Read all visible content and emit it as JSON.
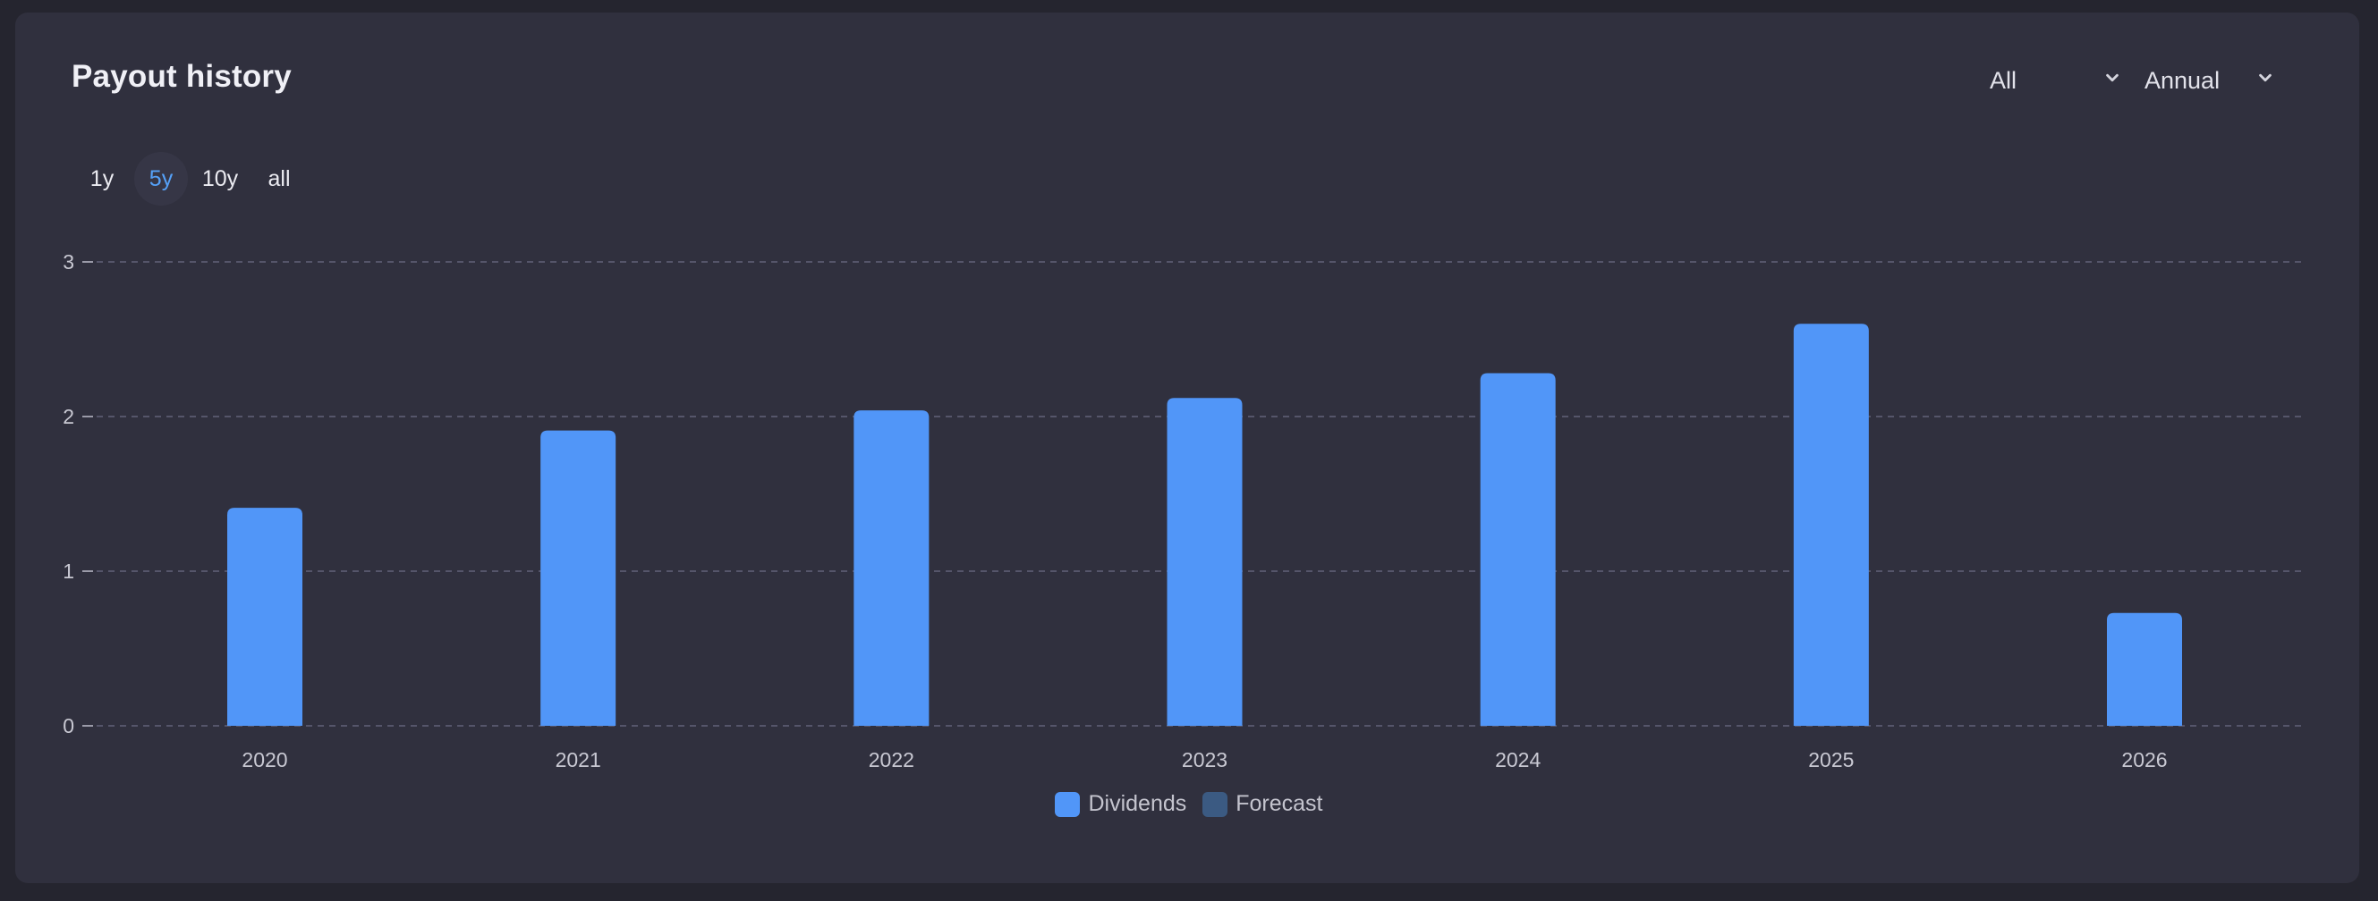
{
  "header": {
    "title": "Payout history",
    "filter_select": "All",
    "period_select": "Annual"
  },
  "range_tabs": [
    {
      "label": "1y",
      "active": false
    },
    {
      "label": "5y",
      "active": true
    },
    {
      "label": "10y",
      "active": false
    },
    {
      "label": "all",
      "active": false
    }
  ],
  "colors": {
    "dividends": "#5196f8",
    "forecast": "#3b5a82",
    "active_tab": "#55a1f8",
    "grid": "#55556a"
  },
  "icons": {
    "select_chevron": "chevron-down-icon"
  },
  "chart_data": {
    "type": "bar",
    "categories": [
      "2020",
      "2021",
      "2022",
      "2023",
      "2024",
      "2025",
      "2026"
    ],
    "series": [
      {
        "name": "Dividends",
        "values": [
          1.41,
          1.91,
          2.04,
          2.12,
          2.28,
          2.6,
          0.73
        ]
      },
      {
        "name": "Forecast",
        "values": [
          0,
          0,
          0,
          0,
          0,
          0,
          0
        ]
      }
    ],
    "ylim": [
      0,
      3
    ],
    "yticks": [
      "0",
      "1",
      "2",
      "3"
    ],
    "grid": true,
    "legend": "bottom-center",
    "xlabel": "",
    "ylabel": ""
  }
}
